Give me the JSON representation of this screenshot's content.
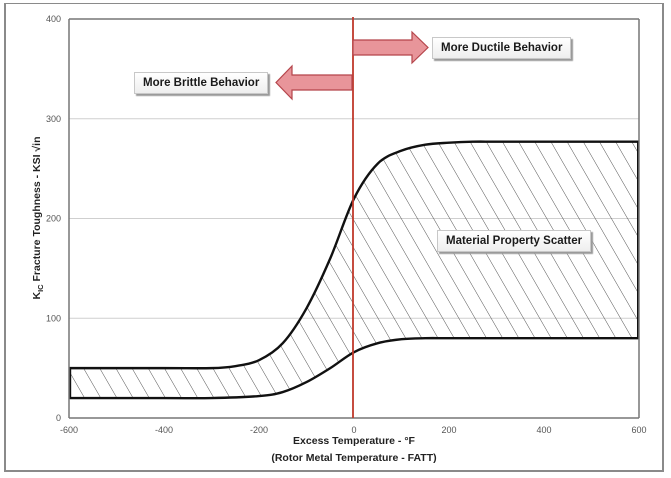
{
  "chart_data": {
    "type": "area",
    "title": "",
    "xlabel": "Excess Temperature - °F",
    "xlabel_line2": "(Rotor Metal Temperature - FATT)",
    "ylabel": "K_IC Fracture Toughness - KSI √in",
    "ylabel_main": "K",
    "ylabel_sub": "IC",
    "ylabel_rest": " Fracture Toughness - KSI √in",
    "xlim": [
      -600,
      600
    ],
    "ylim": [
      0,
      400
    ],
    "x_ticks": [
      "-600",
      "-400",
      "-200",
      "0",
      "200",
      "400",
      "600"
    ],
    "x_tick_values": [
      -600,
      -400,
      -200,
      0,
      200,
      400,
      600
    ],
    "y_ticks": [
      "0",
      "100",
      "200",
      "300",
      "400"
    ],
    "y_tick_values": [
      0,
      100,
      200,
      300,
      400
    ],
    "grid": {
      "horizontal": true,
      "vertical": false
    },
    "legend": null,
    "series": [
      {
        "name": "Upper bound",
        "x": [
          -600,
          -400,
          -300,
          -250,
          -200,
          -150,
          -100,
          -50,
          0,
          50,
          100,
          150,
          200,
          250,
          300,
          400,
          500,
          600
        ],
        "values": [
          50,
          50,
          50,
          52,
          58,
          75,
          110,
          160,
          220,
          255,
          268,
          274,
          276,
          277,
          277,
          277,
          277,
          277
        ]
      },
      {
        "name": "Lower bound",
        "x": [
          -600,
          -400,
          -300,
          -200,
          -150,
          -100,
          -50,
          0,
          50,
          100,
          150,
          200,
          300,
          400,
          500,
          600
        ],
        "values": [
          20,
          20,
          20,
          22,
          26,
          36,
          50,
          66,
          75,
          79,
          80,
          80,
          80,
          80,
          80,
          80
        ]
      }
    ],
    "band": {
      "name": "Material Property Scatter",
      "between": [
        "Upper bound",
        "Lower bound"
      ],
      "fill": "diagonal-hatch"
    },
    "reference_line": {
      "axis": "x",
      "value": 0,
      "color": "#c0392b"
    },
    "annotations": [
      {
        "text": "More Ductile Behavior",
        "arrow": "right",
        "anchor_x": 0,
        "anchor_y": 370
      },
      {
        "text": "More Brittle Behavior",
        "arrow": "left",
        "anchor_x": 0,
        "anchor_y": 335
      },
      {
        "text": "Material Property Scatter",
        "x": 300,
        "y": 178
      }
    ]
  },
  "colors": {
    "curve": "#111111",
    "hatch": "#555555",
    "grid": "#cfcfcf",
    "axis": "#777777",
    "reference_line": "#c0392b",
    "arrow_fill": "#e8959a",
    "arrow_stroke": "#b5454b"
  },
  "labels": {
    "ductile": "More Ductile Behavior",
    "brittle": "More Brittle Behavior",
    "scatter": "Material Property Scatter"
  }
}
